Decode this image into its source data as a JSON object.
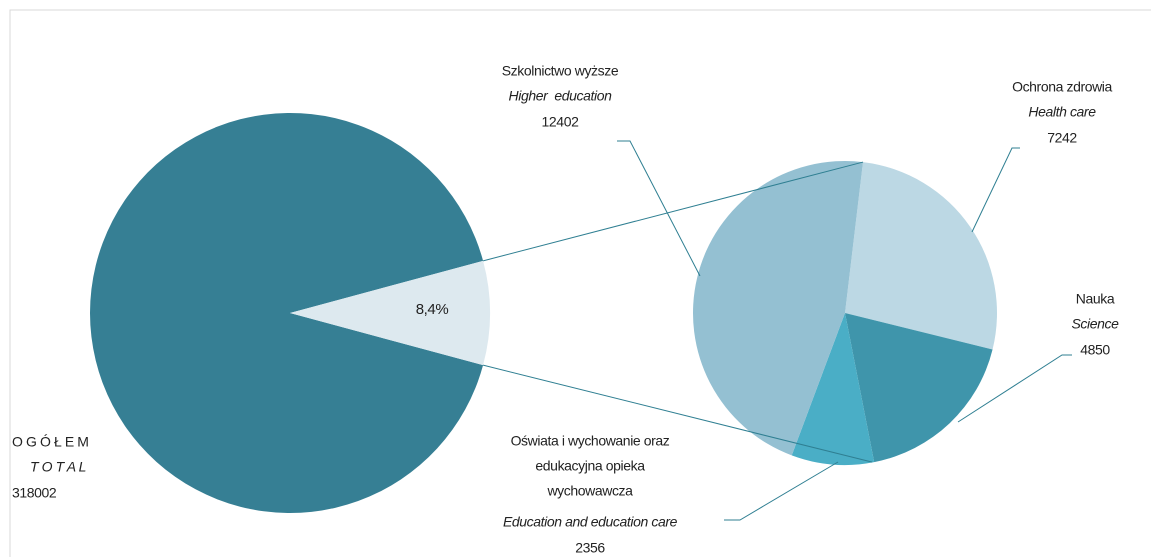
{
  "chart_data": {
    "type": "pie-of-pie",
    "total": {
      "name": "O G Ó Ł E M",
      "name_en": "T O T A L",
      "value": 318002,
      "color": "#367f94"
    },
    "split": {
      "value": 8.4,
      "value_label": "8,4%",
      "color": "#dde9ef"
    },
    "series": [
      {
        "name": [
          "Ochrona zdrowia"
        ],
        "name_en": "Health care",
        "value": 7242,
        "color": "#bcd8e4"
      },
      {
        "name": [
          "Nauka"
        ],
        "name_en": "Science",
        "value": 4850,
        "color": "#3f95ab"
      },
      {
        "name": [
          "Oświata i wychowanie oraz",
          "edukacyjna opieka",
          "wychowawcza"
        ],
        "name_en": "Education and education care",
        "value": 2356,
        "color": "#4aaec6"
      },
      {
        "name": [
          "Szkolnictwo wyższe"
        ],
        "name_en": "Higher  education",
        "value": 12402,
        "color": "#94c0d2"
      }
    ]
  }
}
